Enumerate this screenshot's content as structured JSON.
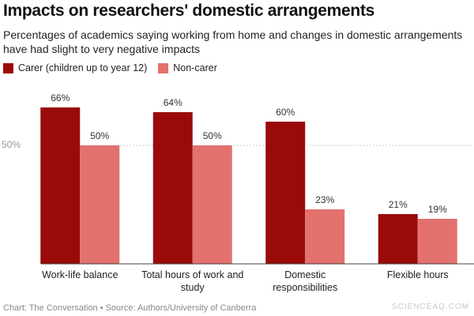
{
  "chart_data": {
    "type": "bar",
    "title": "Impacts on researchers' domestic arrangements",
    "subtitle": "Percentages of academics saying working from home and changes in domestic arrangements have had slight to very negative impacts",
    "categories": [
      "Work-life balance",
      "Total hours of work and study",
      "Domestic responsibilities",
      "Flexible hours"
    ],
    "series": [
      {
        "name": "Carer (children up to year 12)",
        "color": "#9b0a0a",
        "values": [
          66,
          64,
          60,
          21
        ],
        "value_labels": [
          "66%",
          "64%",
          "60%",
          "21%"
        ]
      },
      {
        "name": "Non-carer",
        "color": "#e3726e",
        "values": [
          50,
          50,
          23,
          19
        ],
        "value_labels": [
          "50%",
          "50%",
          "23%",
          "19%"
        ]
      }
    ],
    "ylim": [
      0,
      75
    ],
    "yticks": [
      {
        "value": 50,
        "label": "50%"
      }
    ],
    "grid": true,
    "legend": "top-left",
    "footer": "Chart: The Conversation • Source: Authors/University of Canberra",
    "watermark": "SCIENCEAQ.COM"
  }
}
